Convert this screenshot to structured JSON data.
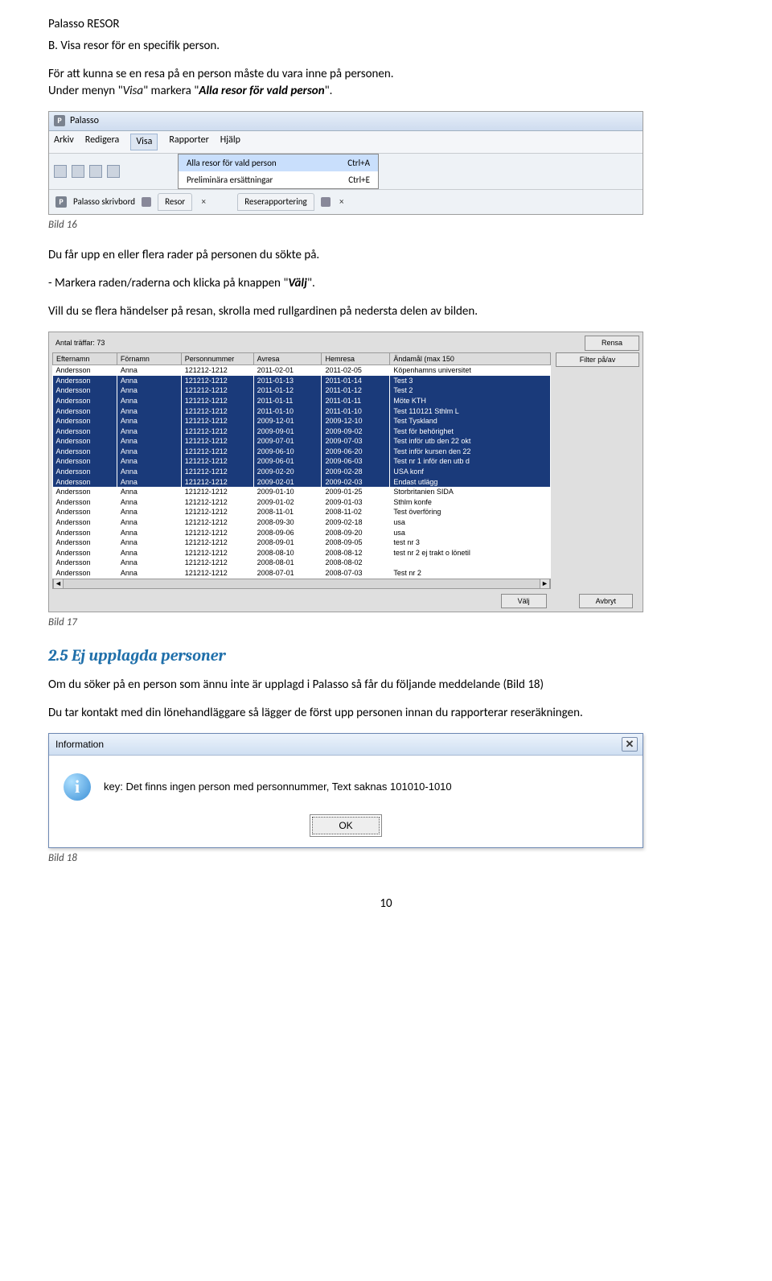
{
  "header": "Palasso RESOR",
  "section_b": "B. Visa resor för en specifik person.",
  "para1_a": "För att kunna se en resa på en person måste du vara inne på personen.",
  "para1_b_pre": "Under menyn \"",
  "para1_b_visa": "Visa",
  "para1_b_mid": "\" markera \"",
  "para1_b_alla": "Alla resor för vald person",
  "para1_b_post": "\".",
  "shot1": {
    "app": "Palasso",
    "menu": {
      "arkiv": "Arkiv",
      "redigera": "Redigera",
      "visa": "Visa",
      "rapporter": "Rapporter",
      "hjalp": "Hjälp"
    },
    "dd": {
      "i1": "Alla resor för vald person",
      "s1": "Ctrl+A",
      "i2": "Preliminära ersättningar",
      "s2": "Ctrl+E"
    },
    "tabs": {
      "skriv": "Palasso skrivbord",
      "resor": "Resor",
      "rapp": "Reserapportering"
    }
  },
  "caption16": "Bild 16",
  "para2": "Du får upp en eller flera rader på personen du sökte på.",
  "para3_pre": "- Markera raden/raderna och klicka på knappen \"",
  "para3_valj": "Välj",
  "para3_post": "\".",
  "para4": "Vill du se flera händelser på resan, skrolla med rullgardinen på nedersta delen av bilden.",
  "shot2": {
    "count": "Antal träffar: 73",
    "btn_rensa": "Rensa",
    "btn_filter": "Filter på/av",
    "btn_valj": "Välj",
    "btn_avbryt": "Avbryt",
    "headers": {
      "efternamn": "Efternamn",
      "fornamn": "Förnamn",
      "pnr": "Personnummer",
      "avresa": "Avresa",
      "hemresa": "Hemresa",
      "andamal": "Ändamål (max 150"
    },
    "rows": [
      {
        "sel": 0,
        "e": "Andersson",
        "f": "Anna",
        "p": "121212-1212",
        "a": "2011-02-01",
        "h": "2011-02-05",
        "x": "Köpenhamns universitet"
      },
      {
        "sel": 1,
        "e": "Andersson",
        "f": "Anna",
        "p": "121212-1212",
        "a": "2011-01-13",
        "h": "2011-01-14",
        "x": "Test 3"
      },
      {
        "sel": 1,
        "e": "Andersson",
        "f": "Anna",
        "p": "121212-1212",
        "a": "2011-01-12",
        "h": "2011-01-12",
        "x": "Test 2"
      },
      {
        "sel": 1,
        "e": "Andersson",
        "f": "Anna",
        "p": "121212-1212",
        "a": "2011-01-11",
        "h": "2011-01-11",
        "x": "Möte KTH"
      },
      {
        "sel": 1,
        "e": "Andersson",
        "f": "Anna",
        "p": "121212-1212",
        "a": "2011-01-10",
        "h": "2011-01-10",
        "x": "Test 110121 Sthlm L"
      },
      {
        "sel": 1,
        "e": "Andersson",
        "f": "Anna",
        "p": "121212-1212",
        "a": "2009-12-01",
        "h": "2009-12-10",
        "x": "Test Tyskland"
      },
      {
        "sel": 1,
        "e": "Andersson",
        "f": "Anna",
        "p": "121212-1212",
        "a": "2009-09-01",
        "h": "2009-09-02",
        "x": "Test för behörighet"
      },
      {
        "sel": 1,
        "e": "Andersson",
        "f": "Anna",
        "p": "121212-1212",
        "a": "2009-07-01",
        "h": "2009-07-03",
        "x": "Test inför utb den 22 okt"
      },
      {
        "sel": 1,
        "e": "Andersson",
        "f": "Anna",
        "p": "121212-1212",
        "a": "2009-06-10",
        "h": "2009-06-20",
        "x": "Test inför kursen den 22"
      },
      {
        "sel": 1,
        "e": "Andersson",
        "f": "Anna",
        "p": "121212-1212",
        "a": "2009-06-01",
        "h": "2009-06-03",
        "x": "Test nr 1 inför den utb d"
      },
      {
        "sel": 1,
        "e": "Andersson",
        "f": "Anna",
        "p": "121212-1212",
        "a": "2009-02-20",
        "h": "2009-02-28",
        "x": "USA konf"
      },
      {
        "sel": 1,
        "e": "Andersson",
        "f": "Anna",
        "p": "121212-1212",
        "a": "2009-02-01",
        "h": "2009-02-03",
        "x": "Endast utlägg"
      },
      {
        "sel": 0,
        "e": "Andersson",
        "f": "Anna",
        "p": "121212-1212",
        "a": "2009-01-10",
        "h": "2009-01-25",
        "x": "Storbritanien SIDA"
      },
      {
        "sel": 0,
        "e": "Andersson",
        "f": "Anna",
        "p": "121212-1212",
        "a": "2009-01-02",
        "h": "2009-01-03",
        "x": "Sthlm konfe"
      },
      {
        "sel": 0,
        "e": "Andersson",
        "f": "Anna",
        "p": "121212-1212",
        "a": "2008-11-01",
        "h": "2008-11-02",
        "x": "Test överföring"
      },
      {
        "sel": 0,
        "e": "Andersson",
        "f": "Anna",
        "p": "121212-1212",
        "a": "2008-09-30",
        "h": "2009-02-18",
        "x": "usa"
      },
      {
        "sel": 0,
        "e": "Andersson",
        "f": "Anna",
        "p": "121212-1212",
        "a": "2008-09-06",
        "h": "2008-09-20",
        "x": "usa"
      },
      {
        "sel": 0,
        "e": "Andersson",
        "f": "Anna",
        "p": "121212-1212",
        "a": "2008-09-01",
        "h": "2008-09-05",
        "x": "test nr 3"
      },
      {
        "sel": 0,
        "e": "Andersson",
        "f": "Anna",
        "p": "121212-1212",
        "a": "2008-08-10",
        "h": "2008-08-12",
        "x": "test nr 2 ej trakt o lönetil"
      },
      {
        "sel": 0,
        "e": "Andersson",
        "f": "Anna",
        "p": "121212-1212",
        "a": "2008-08-01",
        "h": "2008-08-02",
        "x": ""
      },
      {
        "sel": 0,
        "e": "Andersson",
        "f": "Anna",
        "p": "121212-1212",
        "a": "2008-07-01",
        "h": "2008-07-03",
        "x": "Test nr 2"
      }
    ]
  },
  "caption17": "Bild 17",
  "sub25": "2.5  Ej upplagda personer",
  "para5": "Om du söker på en person som ännu inte är upplagd i Palasso så får du följande meddelande (Bild 18)",
  "para6": "Du tar kontakt med din lönehandläggare så lägger de först upp personen innan du rapporterar reseräkningen.",
  "shot3": {
    "title": "Information",
    "msg": "key: Det finns ingen person med personnummer, Text saknas 101010-1010",
    "ok": "OK"
  },
  "caption18": "Bild 18",
  "pagenum": "10"
}
